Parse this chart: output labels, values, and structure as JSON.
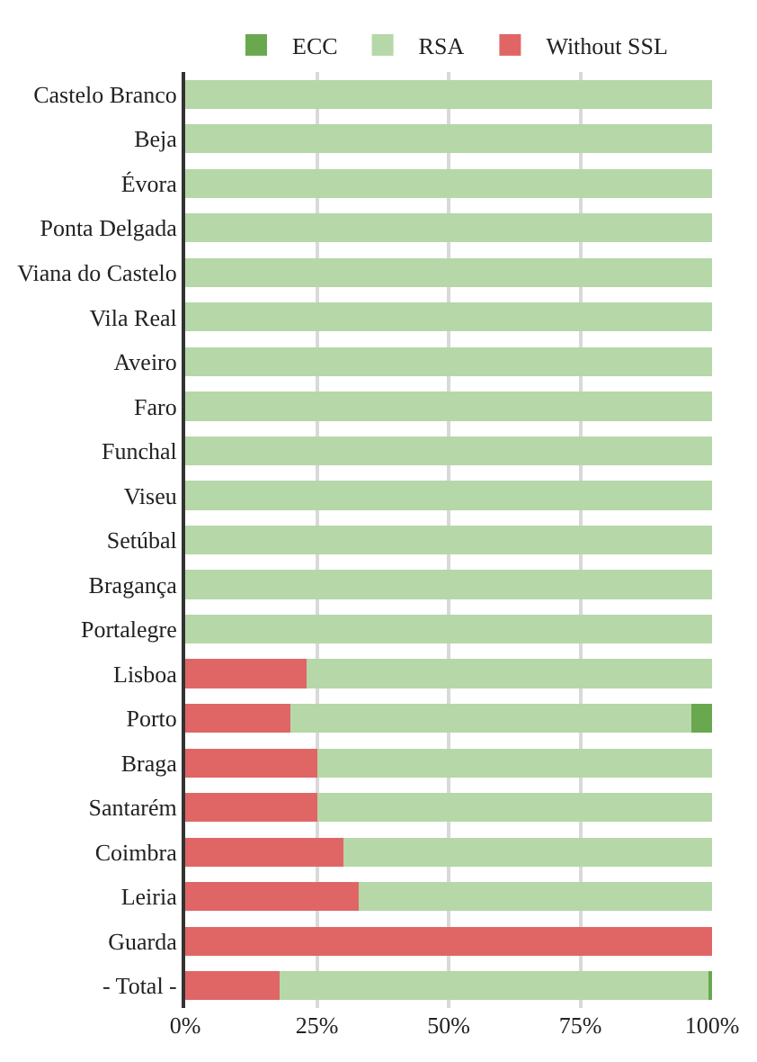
{
  "chart_data": {
    "type": "bar",
    "orientation": "horizontal",
    "stacked": true,
    "categories": [
      "Castelo Branco",
      "Beja",
      "Évora",
      "Ponta Delgada",
      "Viana do Castelo",
      "Vila Real",
      "Aveiro",
      "Faro",
      "Funchal",
      "Viseu",
      "Setúbal",
      "Bragança",
      "Portalegre",
      "Lisboa",
      "Porto",
      "Braga",
      "Santarém",
      "Coimbra",
      "Leiria",
      "Guarda",
      "- Total -"
    ],
    "series": [
      {
        "name": "Without SSL",
        "color": "#e06666",
        "values": [
          0,
          0,
          0,
          0,
          0,
          0,
          0,
          0,
          0,
          0,
          0,
          0,
          0,
          23,
          20,
          25,
          25,
          30,
          33,
          100,
          18
        ]
      },
      {
        "name": "RSA",
        "color": "#b6d7a8",
        "values": [
          100,
          100,
          100,
          100,
          100,
          100,
          100,
          100,
          100,
          100,
          100,
          100,
          100,
          77,
          76,
          75,
          75,
          70,
          67,
          0,
          81.5
        ]
      },
      {
        "name": "ECC",
        "color": "#6aa84f",
        "values": [
          0,
          0,
          0,
          0,
          0,
          0,
          0,
          0,
          0,
          0,
          0,
          0,
          0,
          0,
          4,
          0,
          0,
          0,
          0,
          0,
          0.5
        ]
      }
    ],
    "xlim": [
      0,
      100
    ],
    "xticks": [
      {
        "value": 0,
        "label": "0%"
      },
      {
        "value": 25,
        "label": "25%"
      },
      {
        "value": 50,
        "label": "50%"
      },
      {
        "value": 75,
        "label": "75%"
      },
      {
        "value": 100,
        "label": "100%"
      }
    ],
    "grid": "x",
    "legend": "top"
  }
}
